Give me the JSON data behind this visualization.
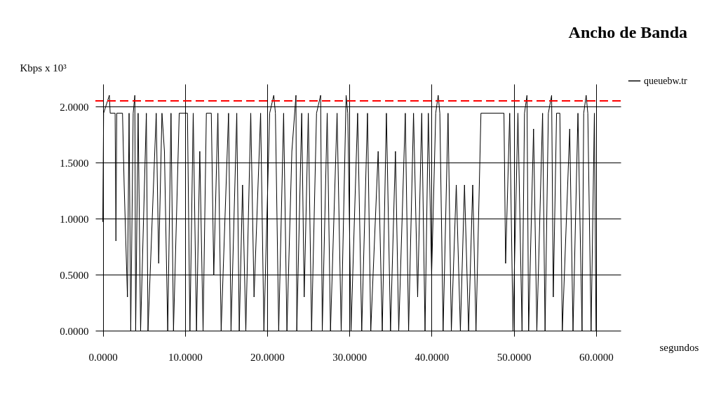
{
  "chart_data": {
    "type": "line",
    "title": "Ancho de Banda",
    "xlabel": "segundos",
    "ylabel": "Kbps x 10³",
    "x": [
      0,
      0.1,
      0.8,
      0.9,
      1.5,
      1.6,
      1.7,
      2.4,
      2.6,
      3.0,
      3.2,
      3.4,
      3.7,
      3.9,
      4.0,
      4.3,
      4.6,
      5.3,
      5.5,
      6.5,
      6.8,
      7.2,
      7.5,
      7.9,
      8.3,
      8.6,
      9.3,
      10.3,
      10.6,
      11.0,
      11.4,
      11.8,
      12.2,
      12.6,
      13.2,
      13.5,
      14.0,
      14.4,
      15.3,
      15.6,
      16.3,
      16.6,
      17.0,
      17.4,
      18.0,
      18.4,
      19.2,
      19.6,
      20.3,
      20.8,
      21.0,
      21.4,
      22.0,
      22.4,
      23.0,
      23.5,
      23.6,
      24.2,
      24.5,
      25.0,
      25.4,
      26.0,
      26.5,
      26.7,
      27.3,
      27.7,
      28.5,
      29.0,
      29.6,
      29.8,
      30.2,
      31.0,
      31.5,
      32.2,
      32.6,
      33.5,
      34.0,
      34.5,
      35.0,
      35.6,
      36.0,
      36.8,
      37.2,
      37.8,
      38.3,
      38.8,
      39.2,
      39.6,
      40.0,
      40.5,
      40.8,
      41.0,
      41.4,
      42.0,
      42.4,
      43.0,
      43.5,
      44.0,
      44.5,
      45.0,
      45.4,
      46.0,
      48.8,
      49.0,
      49.5,
      49.9,
      50.5,
      51.0,
      51.3,
      51.6,
      51.8,
      52.4,
      52.8,
      53.5,
      53.8,
      54.2,
      54.6,
      54.8,
      55.2,
      55.6,
      55.9,
      56.8,
      57.2,
      57.8,
      58.3,
      58.5,
      58.8,
      59.0,
      59.4,
      59.8,
      60.0
    ],
    "series": [
      {
        "name": "queuebw.tr",
        "color": "#000000",
        "values": [
          0.97,
          1.94,
          2.1,
          1.94,
          1.94,
          0.8,
          1.94,
          1.94,
          1.3,
          0.3,
          1.94,
          0,
          1.94,
          2.1,
          0,
          1.94,
          0,
          1.94,
          0,
          1.94,
          0.6,
          1.94,
          1.6,
          0,
          1.94,
          0,
          1.94,
          1.94,
          0,
          1.94,
          0,
          1.6,
          0,
          1.94,
          1.94,
          0.5,
          1.94,
          0,
          1.94,
          0,
          1.94,
          0,
          1.3,
          0,
          1.94,
          0.3,
          1.94,
          0,
          1.94,
          2.1,
          1.94,
          0,
          1.94,
          0,
          1.6,
          2.1,
          0,
          1.94,
          0.3,
          1.94,
          0,
          1.94,
          2.1,
          0,
          1.94,
          0,
          1.94,
          0,
          2.1,
          1.94,
          0,
          1.94,
          0,
          1.94,
          0,
          1.6,
          0,
          1.94,
          0,
          1.6,
          0,
          1.94,
          0,
          1.94,
          0.3,
          1.94,
          0,
          1.94,
          0.5,
          1.94,
          2.1,
          1.94,
          0,
          1.94,
          0,
          1.3,
          0,
          1.3,
          0,
          1.3,
          0,
          1.94,
          1.94,
          0.6,
          1.94,
          0,
          1.94,
          0,
          1.94,
          2.1,
          0,
          1.8,
          0,
          1.94,
          0,
          1.94,
          2.1,
          0.3,
          1.94,
          1.94,
          0,
          1.8,
          0,
          1.94,
          0,
          1.94,
          2.1,
          1.94,
          0,
          1.94,
          0
        ]
      }
    ],
    "xlim": [
      -0.9,
      63
    ],
    "ylim": [
      -0.05,
      2.2
    ],
    "xticks": [
      {
        "value": 0,
        "label": "0.0000"
      },
      {
        "value": 10,
        "label": "10.0000"
      },
      {
        "value": 20,
        "label": "20.0000"
      },
      {
        "value": 30,
        "label": "30.0000"
      },
      {
        "value": 40,
        "label": "40.0000"
      },
      {
        "value": 50,
        "label": "50.0000"
      },
      {
        "value": 60,
        "label": "60.0000"
      }
    ],
    "yticks": [
      {
        "value": 0,
        "label": "0.0000"
      },
      {
        "value": 0.5,
        "label": "0.5000"
      },
      {
        "value": 1,
        "label": "1.0000"
      },
      {
        "value": 1.5,
        "label": "1.5000"
      },
      {
        "value": 2,
        "label": "2.0000"
      }
    ],
    "ref_lines": [
      {
        "axis": "y",
        "value": 2.05,
        "color": "#ff0000",
        "line_style": "dashed"
      }
    ],
    "grid": true,
    "legend": "top right"
  }
}
